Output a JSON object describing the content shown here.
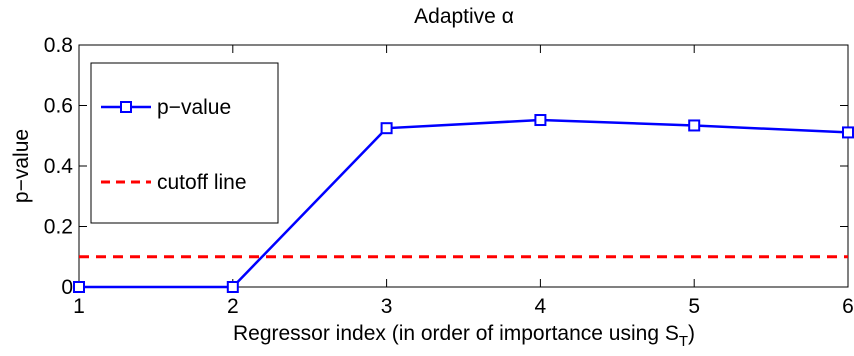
{
  "chart_data": {
    "type": "line",
    "title": "Adaptive α",
    "xlabel": "Regressor index (in order of importance using S",
    "xlabel_subscript": "T",
    "xlabel_suffix": ")",
    "ylabel": "p−value",
    "xlim": [
      1,
      6
    ],
    "ylim": [
      0,
      0.8
    ],
    "x_ticks": [
      1,
      2,
      3,
      4,
      5,
      6
    ],
    "y_ticks": [
      0,
      0.2,
      0.4,
      0.6,
      0.8
    ],
    "y_tick_labels": [
      "0",
      "0.2",
      "0.4",
      "0.6",
      "0.8"
    ],
    "grid": false,
    "legend_position": "left",
    "series": [
      {
        "name": "p−value",
        "style": "solid-square-markers",
        "color": "#0000ff",
        "x": [
          1,
          2,
          3,
          4,
          5,
          6
        ],
        "y": [
          0.0,
          0.0,
          0.525,
          0.552,
          0.534,
          0.511
        ]
      },
      {
        "name": "cutoff line",
        "style": "dashed",
        "color": "#ff0000",
        "x": [
          1,
          6
        ],
        "y": [
          0.1,
          0.1
        ]
      }
    ]
  }
}
